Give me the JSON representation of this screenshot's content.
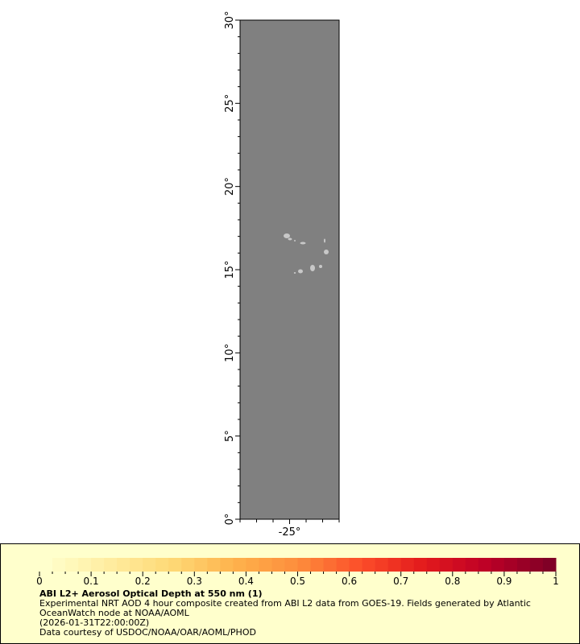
{
  "map": {
    "lat_range": [
      0,
      30
    ],
    "lon_range": [
      -28,
      -22
    ],
    "lat_tick_labels": [
      "0°",
      "5°",
      "10°",
      "15°",
      "20°",
      "25°",
      "30°"
    ],
    "lat_ticks": [
      0,
      5,
      10,
      15,
      20,
      25,
      30
    ],
    "lon_tick_labels": [
      "-25°"
    ],
    "lon_ticks": [
      -25
    ],
    "background_color": "#808080",
    "land_color": "#c8c8c8"
  },
  "colorbar": {
    "range": [
      0,
      1
    ],
    "tick_labels": [
      "0",
      "0.1",
      "0.2",
      "0.3",
      "0.4",
      "0.5",
      "0.6",
      "0.7",
      "0.8",
      "0.9",
      "1"
    ],
    "colormap": [
      "#ffffcc",
      "#ffeda0",
      "#fed976",
      "#feb24c",
      "#fd8d3c",
      "#fc4e2a",
      "#e31a1c",
      "#bd0026",
      "#800026"
    ]
  },
  "legend": {
    "title": "ABI L2+ Aerosol Optical Depth at 550 nm (1)",
    "line1": "Experimental NRT AOD 4 hour composite created from ABI L2 data from GOES-19. Fields generated by Atlantic OceanWatch node at NOAA/AOML",
    "line2": "(2026-01-31T22:00:00Z)",
    "line3": "Data courtesy of USDOC/NOAA/OAR/AOML/PHOD"
  }
}
